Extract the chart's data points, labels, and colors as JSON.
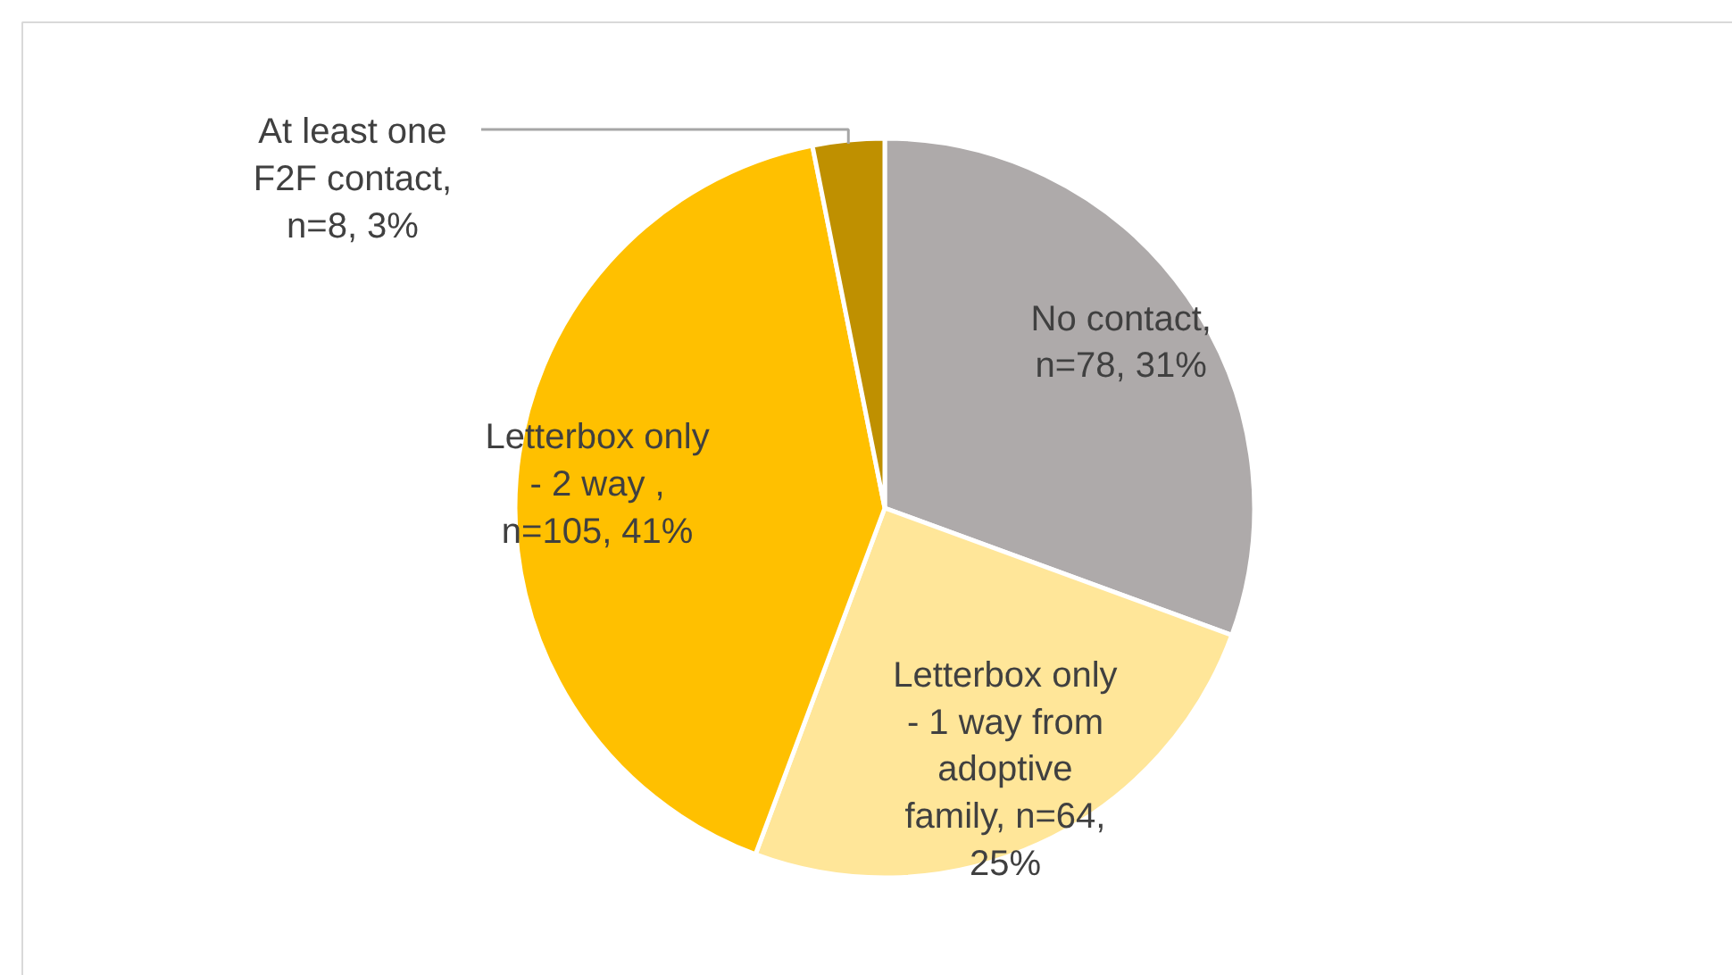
{
  "chart_data": {
    "type": "pie",
    "categories": [
      "No contact, n=78, 31%",
      "Letterbox only - 1 way from adoptive family, n=64, 25%",
      "Letterbox only - 2 way , n=105, 41%",
      "At least one F2F contact, n=8, 3%"
    ],
    "values": [
      78,
      64,
      105,
      8
    ],
    "colors": [
      "#aeaaaa",
      "#ffe699",
      "#ffc000",
      "#bf9000"
    ]
  }
}
